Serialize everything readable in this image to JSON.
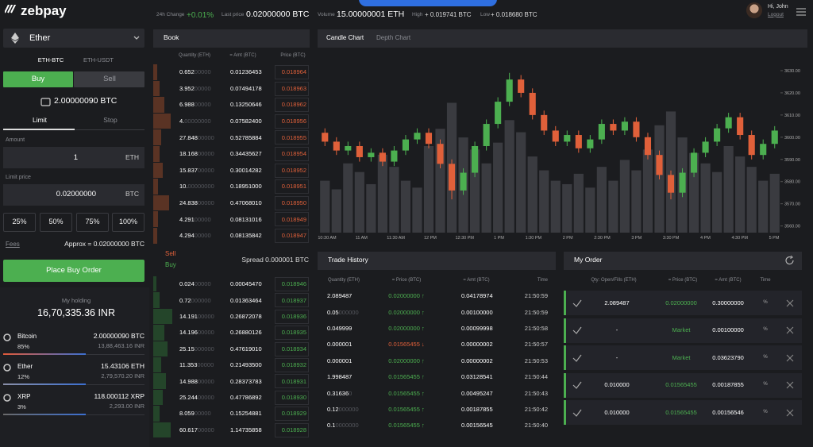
{
  "header": {
    "logo": "zebpay",
    "change_label": "24h Change",
    "change": "+0.01%",
    "last_label": "Last price",
    "last": "0.02000000 BTC",
    "volume_label": "Volume",
    "volume": "15.00000001 ETH",
    "high_label": "High",
    "high": "+ 0.019741 BTC",
    "low_label": "Low",
    "low": "+ 0.018680 BTC",
    "greeting": "Hi, John",
    "logout": "Logout"
  },
  "trade_form": {
    "coin": "Ether",
    "pairs": [
      "ETH-BTC",
      "ETH-USDT"
    ],
    "sides": [
      "Buy",
      "Sell"
    ],
    "balance": "2.00000090 BTC",
    "order_types": [
      "Limit",
      "Stop"
    ],
    "amount_label": "Amount",
    "amount": "1",
    "amount_unit": "ETH",
    "price_label": "Limit price",
    "price": "0.02000000",
    "price_unit": "BTC",
    "percents": [
      "25%",
      "50%",
      "75%",
      "100%"
    ],
    "fees": "Fees",
    "approx": "Approx = 0.02000000 BTC",
    "submit": "Place Buy Order"
  },
  "holdings": {
    "title": "My holding",
    "total": "16,70,335.36 INR",
    "items": [
      {
        "name": "Bitcoin",
        "share": "85%",
        "amount": "2.00000090 BTC",
        "value": "13,88,463.16 INR",
        "color": "#e05a3a"
      },
      {
        "name": "Ether",
        "share": "12%",
        "amount": "15.43106 ETH",
        "value": "2,79,570.20 INR",
        "color": "#8a8fa8"
      },
      {
        "name": "XRP",
        "share": "3%",
        "amount": "118.000112 XRP",
        "value": "2,293.00 INR",
        "color": "#6a6a6a"
      }
    ]
  },
  "book": {
    "title": "Book",
    "headers": [
      "Quantity (ETH)",
      "= Amt (BTC)",
      "Price (BTC)"
    ],
    "sells": [
      [
        "0.65200000",
        "0.01236453",
        "0.018964"
      ],
      [
        "3.95200000",
        "0.07494178",
        "0.018963"
      ],
      [
        "6.98800000",
        "0.13250646",
        "0.018962"
      ],
      [
        "4.00000000",
        "0.07582400",
        "0.018956"
      ],
      [
        "27.84800000",
        "0.52785884",
        "0.018955"
      ],
      [
        "18.16800000",
        "0.34435627",
        "0.018954"
      ],
      [
        "15.83700000",
        "0.30014282",
        "0.018952"
      ],
      [
        "10.00000000",
        "0.18951000",
        "0.018951"
      ],
      [
        "24.83800000",
        "0.47068010",
        "0.018950"
      ],
      [
        "4.29100000",
        "0.08131016",
        "0.018949"
      ],
      [
        "4.29400000",
        "0.08135842",
        "0.018947"
      ]
    ],
    "sell_label": "Sell",
    "buy_label": "Buy",
    "spread": "Spread 0.000001 BTC",
    "buys": [
      [
        "0.02400000",
        "0.00045470",
        "0.018946"
      ],
      [
        "0.72000000",
        "0.01363464",
        "0.018937"
      ],
      [
        "14.19100000",
        "0.26872078",
        "0.018936"
      ],
      [
        "14.19600000",
        "0.26880126",
        "0.018935"
      ],
      [
        "25.15000000",
        "0.47619010",
        "0.018934"
      ],
      [
        "11.35300000",
        "0.21493500",
        "0.018932"
      ],
      [
        "14.98800000",
        "0.28373783",
        "0.018931"
      ],
      [
        "25.24400000",
        "0.47786892",
        "0.018930"
      ],
      [
        "8.05900000",
        "0.15254881",
        "0.018929"
      ],
      [
        "60.61700000",
        "1.14735858",
        "0.018928"
      ]
    ]
  },
  "chart_tabs": [
    "Candle Chart",
    "Depth Chart"
  ],
  "chart_data": {
    "type": "candlestick",
    "up_color": "#4caf50",
    "down_color": "#e0603a",
    "volume_color": "#3a3b40",
    "ohlc": [
      [
        3602,
        3604,
        3596,
        3598
      ],
      [
        3598,
        3600,
        3592,
        3594
      ],
      [
        3594,
        3598,
        3592,
        3596
      ],
      [
        3596,
        3598,
        3589,
        3591
      ],
      [
        3591,
        3595,
        3589,
        3593
      ],
      [
        3593,
        3595,
        3587,
        3589
      ],
      [
        3589,
        3596,
        3587,
        3594
      ],
      [
        3594,
        3601,
        3592,
        3599
      ],
      [
        3599,
        3604,
        3597,
        3602
      ],
      [
        3602,
        3604,
        3595,
        3597
      ],
      [
        3597,
        3599,
        3586,
        3588
      ],
      [
        3588,
        3590,
        3572,
        3576
      ],
      [
        3576,
        3586,
        3574,
        3584
      ],
      [
        3584,
        3598,
        3582,
        3596
      ],
      [
        3596,
        3608,
        3594,
        3606
      ],
      [
        3606,
        3618,
        3604,
        3616
      ],
      [
        3616,
        3629,
        3614,
        3626
      ],
      [
        3626,
        3628,
        3618,
        3620
      ],
      [
        3620,
        3622,
        3608,
        3610
      ],
      [
        3610,
        3612,
        3601,
        3603
      ],
      [
        3603,
        3605,
        3596,
        3598
      ],
      [
        3598,
        3603,
        3596,
        3601
      ],
      [
        3601,
        3603,
        3593,
        3595
      ],
      [
        3595,
        3601,
        3593,
        3599
      ],
      [
        3599,
        3608,
        3597,
        3606
      ],
      [
        3606,
        3608,
        3601,
        3603
      ],
      [
        3603,
        3609,
        3601,
        3607
      ],
      [
        3607,
        3609,
        3598,
        3600
      ],
      [
        3600,
        3602,
        3590,
        3592
      ],
      [
        3592,
        3594,
        3581,
        3583
      ],
      [
        3583,
        3585,
        3572,
        3575
      ],
      [
        3575,
        3586,
        3573,
        3584
      ],
      [
        3584,
        3595,
        3582,
        3593
      ],
      [
        3593,
        3600,
        3591,
        3598
      ],
      [
        3598,
        3606,
        3596,
        3604
      ],
      [
        3604,
        3611,
        3602,
        3609
      ],
      [
        3609,
        3611,
        3599,
        3601
      ],
      [
        3601,
        3603,
        3590,
        3592
      ],
      [
        3592,
        3599,
        3590,
        3597
      ],
      [
        3597,
        3605,
        3595,
        3603
      ]
    ],
    "volumes": [
      30,
      25,
      40,
      35,
      28,
      45,
      38,
      30,
      26,
      50,
      60,
      75,
      55,
      48,
      40,
      52,
      65,
      58,
      44,
      36,
      30,
      28,
      34,
      26,
      38,
      30,
      42,
      36,
      48,
      62,
      70,
      55,
      46,
      40,
      35,
      50,
      44,
      38,
      30,
      34
    ],
    "volume_lim": [
      0,
      100
    ],
    "ylim": [
      3557,
      3635
    ],
    "yticks": [
      {
        "value": 3630,
        "label": "3630.00"
      },
      {
        "value": 3620,
        "label": "3620.00"
      },
      {
        "value": 3610,
        "label": "3610.00"
      },
      {
        "value": 3600,
        "label": "3600.00"
      },
      {
        "value": 3590,
        "label": "3590.00"
      },
      {
        "value": 3580,
        "label": "3580.00"
      },
      {
        "value": 3570,
        "label": "3570.00"
      },
      {
        "value": 3560,
        "label": "3560.00"
      }
    ],
    "xticks": [
      "10:30 AM",
      "11 AM",
      "11:30 AM",
      "12 PM",
      "12:30 PM",
      "1 PM",
      "1:30 PM",
      "2 PM",
      "2:30 PM",
      "3 PM",
      "3:30 PM",
      "4 PM",
      "4:30 PM",
      "5 PM"
    ]
  },
  "trade_history": {
    "title": "Trade History",
    "headers": [
      "Quantity (ETH)",
      "= Price (BTC)",
      "= Amt (BTC)",
      "Time"
    ],
    "rows": [
      {
        "qty": "2.089487",
        "price": "0.02000000 ↑",
        "amt": "0.04178974",
        "time": "21:50:59",
        "color": "#4caf50"
      },
      {
        "qty": "0.05000000",
        "price": "0.02000000 ↑",
        "amt": "0.00100000",
        "time": "21:50:59",
        "color": "#4caf50"
      },
      {
        "qty": "0.049999",
        "price": "0.02000000 ↑",
        "amt": "0.00099998",
        "time": "21:50:58",
        "color": "#4caf50"
      },
      {
        "qty": "0.000001",
        "price": "0.01565455 ↓",
        "amt": "0.00000002",
        "time": "21:50:57",
        "color": "#e0603a"
      },
      {
        "qty": "0.000001",
        "price": "0.02000000 ↑",
        "amt": "0.00000002",
        "time": "21:50:53",
        "color": "#4caf50"
      },
      {
        "qty": "1.998487",
        "price": "0.01565455 ↑",
        "amt": "0.03128541",
        "time": "21:50:44",
        "color": "#4caf50"
      },
      {
        "qty": "0.316360",
        "price": "0.01565455 ↑",
        "amt": "0.00495247",
        "time": "21:50:43",
        "color": "#4caf50"
      },
      {
        "qty": "0.12000000",
        "price": "0.01565455 ↑",
        "amt": "0.00187855",
        "time": "21:50:42",
        "color": "#4caf50"
      },
      {
        "qty": "0.10000000",
        "price": "0.01565455 ↑",
        "amt": "0.00156545",
        "time": "21:50:40",
        "color": "#4caf50"
      }
    ]
  },
  "my_order": {
    "title": "My Order",
    "headers": [
      "Qty: Open/Fills (ETH)",
      "= Price (BTC)",
      "= Amt (BTC)",
      "Time"
    ],
    "rows": [
      {
        "qty": "2.089487",
        "price": "0.02000000",
        "amt": "0.30000000",
        "time": "%"
      },
      {
        "qty": "-",
        "price": "Market",
        "amt": "0.00100000",
        "time": "%"
      },
      {
        "qty": "-",
        "price": "Market",
        "amt": "0.03623790",
        "time": "%"
      },
      {
        "qty": "0.010000",
        "price": "0.01565455",
        "amt": "0.00187855",
        "time": "%"
      },
      {
        "qty": "0.010000",
        "price": "0.01565455",
        "amt": "0.00156546",
        "time": "%"
      }
    ]
  }
}
